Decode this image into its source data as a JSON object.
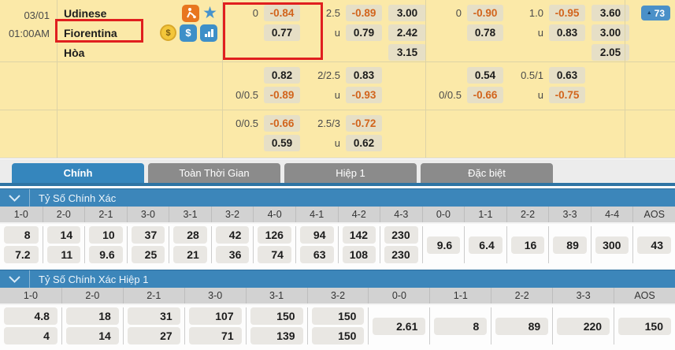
{
  "colors": {
    "accent_blue": "#3586bd",
    "underline_blue": "#2e74a4",
    "panel_yellow": "#fbe9a8",
    "odds_chip": "#e6dfc6",
    "negative_orange": "#d2641c",
    "highlight_red": "#e01f1f",
    "tab_inactive_gray": "#8b8b8b"
  },
  "match": {
    "date": "03/01",
    "time": "01:00AM",
    "home": "Udinese",
    "away": "Fiorentina",
    "draw": "Hòa",
    "badge_count": "73",
    "home_icons": [
      "player-icon",
      "star-icon"
    ],
    "away_icons": [
      "coin-icon",
      "dollar-icon",
      "stats-icon"
    ]
  },
  "odds": {
    "r1l": {
      "hdp": {
        "tl": "0",
        "tv": "-0.84",
        "bl": "",
        "bv": "0.77"
      },
      "ou": {
        "tl": "2.5",
        "tv": "-0.89",
        "bl": "u",
        "bv": "0.79"
      },
      "x12": [
        "3.00",
        "2.42",
        "3.15"
      ]
    },
    "r1r": {
      "hdp": {
        "tl": "0",
        "tv": "-0.90",
        "bl": "",
        "bv": "0.78"
      },
      "ou": {
        "tl": "1.0",
        "tv": "-0.95",
        "bl": "u",
        "bv": "0.83"
      },
      "x12": [
        "3.60",
        "3.00",
        "2.05"
      ]
    },
    "r2l": {
      "hdp": {
        "tl": "",
        "tv": "0.82",
        "bl": "0/0.5",
        "bv": "-0.89"
      },
      "ou": {
        "tl": "2/2.5",
        "tv": "0.83",
        "bl": "u",
        "bv": "-0.93"
      }
    },
    "r2r": {
      "hdp": {
        "tl": "",
        "tv": "0.54",
        "bl": "0/0.5",
        "bv": "-0.66"
      },
      "ou": {
        "tl": "0.5/1",
        "tv": "0.63",
        "bl": "u",
        "bv": "-0.75"
      }
    },
    "r3l": {
      "hdp": {
        "tl": "0/0.5",
        "tv": "-0.66",
        "bl": "",
        "bv": "0.59"
      },
      "ou": {
        "tl": "2.5/3",
        "tv": "-0.72",
        "bl": "u",
        "bv": "0.62"
      }
    }
  },
  "tabs": [
    {
      "label": "Chính",
      "active": true
    },
    {
      "label": "Toàn Thời Gian",
      "active": false
    },
    {
      "label": "Hiệp 1",
      "active": false
    },
    {
      "label": "Đặc biệt",
      "active": false
    }
  ],
  "score_sections": [
    {
      "title": "Tỷ Số Chính Xác",
      "columns": [
        "1-0",
        "2-0",
        "2-1",
        "3-0",
        "3-1",
        "3-2",
        "4-0",
        "4-1",
        "4-2",
        "4-3",
        "0-0",
        "1-1",
        "2-2",
        "3-3",
        "4-4",
        "AOS"
      ],
      "top": [
        "8",
        "14",
        "10",
        "37",
        "28",
        "42",
        "126",
        "94",
        "142",
        "230"
      ],
      "bottom": [
        "7.2",
        "11",
        "9.6",
        "25",
        "21",
        "36",
        "74",
        "63",
        "108",
        "230"
      ],
      "single": [
        "9.6",
        "6.4",
        "16",
        "89",
        "300",
        "43"
      ]
    },
    {
      "title": "Tỷ Số Chính Xác Hiệp 1",
      "columns": [
        "1-0",
        "2-0",
        "2-1",
        "3-0",
        "3-1",
        "3-2",
        "0-0",
        "1-1",
        "2-2",
        "3-3",
        "AOS"
      ],
      "top": [
        "4.8",
        "18",
        "31",
        "107",
        "150",
        "150"
      ],
      "bottom": [
        "4",
        "14",
        "27",
        "71",
        "139",
        "150"
      ],
      "single": [
        "2.61",
        "8",
        "89",
        "220",
        "150"
      ]
    }
  ]
}
